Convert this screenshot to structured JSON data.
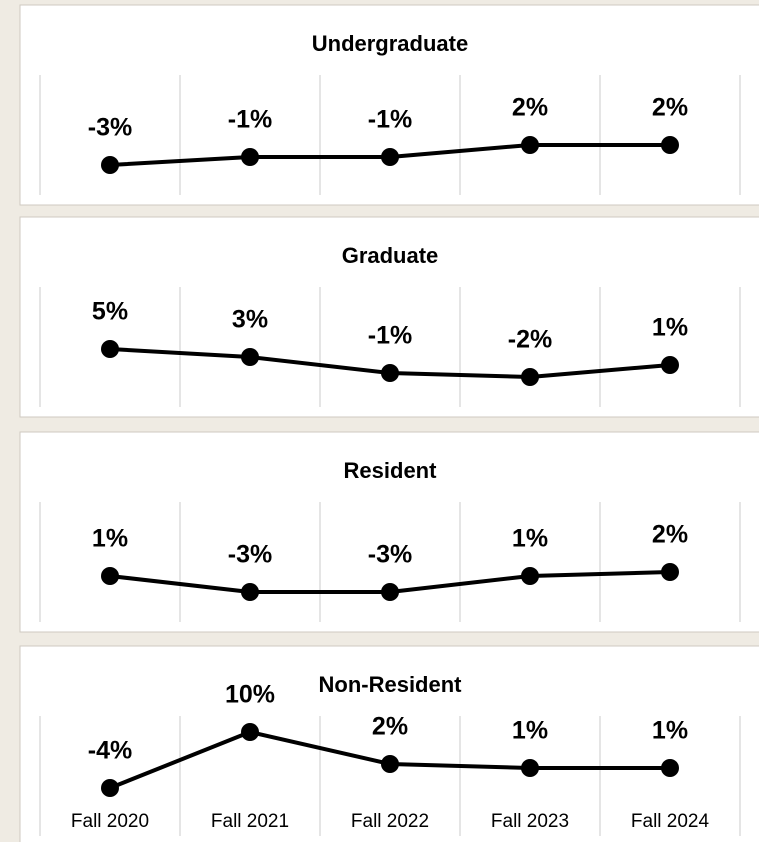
{
  "chart_data": [
    {
      "type": "line",
      "title": "Undergraduate",
      "color": "#000000",
      "values": [
        -3,
        -1,
        -1,
        2,
        2
      ],
      "value_labels": [
        "-3%",
        "-1%",
        "-1%",
        "2%",
        "2%"
      ]
    },
    {
      "type": "line",
      "title": "Graduate",
      "color": "#000000",
      "values": [
        5,
        3,
        -1,
        -2,
        1
      ],
      "value_labels": [
        "5%",
        "3%",
        "-1%",
        "-2%",
        "1%"
      ]
    },
    {
      "type": "line",
      "title": "Resident",
      "color": "#000000",
      "values": [
        1,
        -3,
        -3,
        1,
        2
      ],
      "value_labels": [
        "1%",
        "-3%",
        "-3%",
        "1%",
        "2%"
      ]
    },
    {
      "type": "line",
      "title": "Non-Resident",
      "color": "#000000",
      "categories": [
        "Fall 2020",
        "Fall 2021",
        "Fall 2022",
        "Fall 2023",
        "Fall 2024"
      ],
      "values": [
        -4,
        10,
        2,
        1,
        1
      ],
      "value_labels": [
        "-4%",
        "10%",
        "2%",
        "1%",
        "1%"
      ]
    }
  ]
}
